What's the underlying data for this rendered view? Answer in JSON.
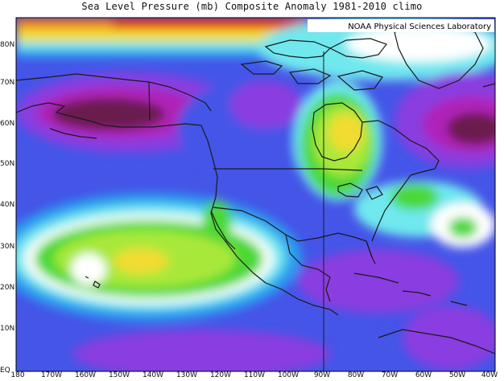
{
  "title": "Sea Level Pressure (mb) Composite Anomaly 1981-2010 climo",
  "credit": "NOAA Physical Sciences Laboratory",
  "lat_labels": [
    "80N",
    "70N",
    "60N",
    "50N",
    "40N",
    "30N",
    "20N",
    "10N",
    "EQ"
  ],
  "lon_labels": [
    "180",
    "170W",
    "160W",
    "150W",
    "140W",
    "130W",
    "120W",
    "110W",
    "100W",
    "90W",
    "80W",
    "70W",
    "60W",
    "50W",
    "40W"
  ],
  "colors": {
    "deep_negative": "#6b1a4d",
    "strong_negative": "#b020b8",
    "negative": "#8a3ee0",
    "weak_negative": "#4455e8",
    "near_zero_low": "#2c9fee",
    "near_zero": "#6fe8ee",
    "zero": "#ffffff",
    "weak_positive": "#4cd834",
    "positive": "#a8e83a",
    "strong_positive": "#f2dc32",
    "very_high": "#f08a20",
    "extreme": "#e02818",
    "coastline": "#1a1a1a"
  }
}
